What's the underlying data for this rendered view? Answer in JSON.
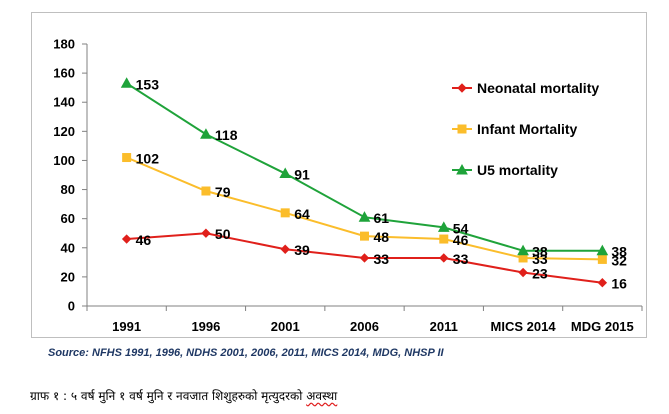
{
  "chart_data": {
    "type": "line",
    "categories": [
      "1991",
      "1996",
      "2001",
      "2006",
      "2011",
      "MICS 2014",
      "MDG 2015"
    ],
    "ylim": [
      0,
      180
    ],
    "yticks": [
      0,
      20,
      40,
      60,
      80,
      100,
      120,
      140,
      160,
      180
    ],
    "grid": false,
    "legend_position": "right",
    "series": [
      {
        "name": "Neonatal mortality",
        "color": "#e0201b",
        "marker": "diamond",
        "values": [
          46,
          50,
          39,
          33,
          33,
          23,
          16
        ]
      },
      {
        "name": "Infant Mortality",
        "color": "#fbbd2b",
        "marker": "square",
        "values": [
          102,
          79,
          64,
          48,
          46,
          33,
          32
        ]
      },
      {
        "name": "U5 mortality",
        "color": "#1fa33a",
        "marker": "triangle",
        "values": [
          153,
          118,
          91,
          61,
          54,
          38,
          38
        ]
      }
    ]
  },
  "source": "Source: NFHS 1991, 1996, NDHS 2001, 2006, 2011, MICS 2014, MDG, NHSP II",
  "caption": {
    "main": "ग्राफ १ : ५ वर्ष मुनि १ वर्ष मुनि र नवजात शिशुहरुको मृत्युदरको ",
    "underlined": "अवस्था"
  }
}
